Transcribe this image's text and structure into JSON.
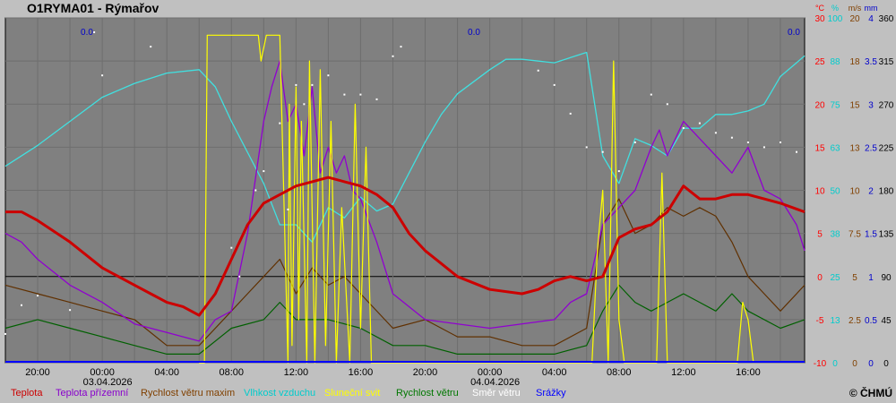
{
  "title": "O1RYMA01 - Rýmařov",
  "copyright": "© ČHMÚ",
  "chart_data": {
    "type": "line",
    "time_range": {
      "start": "2026-04-02T18:00",
      "end": "2026-04-04T19:30"
    },
    "x_tick_labels": [
      {
        "t": "2026-04-02T20:00",
        "label": "20:00"
      },
      {
        "t": "2026-04-03T00:00",
        "label": "00:00",
        "date": "03.04.2026"
      },
      {
        "t": "2026-04-03T04:00",
        "label": "04:00"
      },
      {
        "t": "2026-04-03T08:00",
        "label": "08:00"
      },
      {
        "t": "2026-04-03T12:00",
        "label": "12:00"
      },
      {
        "t": "2026-04-03T16:00",
        "label": "16:00"
      },
      {
        "t": "2026-04-03T20:00",
        "label": "20:00"
      },
      {
        "t": "2026-04-04T00:00",
        "label": "00:00",
        "date": "04.04.2026"
      },
      {
        "t": "2026-04-04T04:00",
        "label": "04:00"
      },
      {
        "t": "2026-04-04T08:00",
        "label": "08:00"
      },
      {
        "t": "2026-04-04T12:00",
        "label": "12:00"
      },
      {
        "t": "2026-04-04T16:00",
        "label": "16:00"
      }
    ],
    "axes": [
      {
        "unit": "°C",
        "color": "#ff0000",
        "ticks": [
          "30",
          "25",
          "20",
          "15",
          "10",
          "5",
          "0",
          "-5",
          "-10"
        ],
        "ylim": [
          -10,
          30
        ]
      },
      {
        "unit": "%",
        "color": "#00cccc",
        "ticks": [
          "100",
          "88",
          "75",
          "63",
          "50",
          "38",
          "25",
          "13",
          "0"
        ],
        "ylim": [
          0,
          100
        ]
      },
      {
        "unit": "m/s",
        "color": "#804000",
        "ticks": [
          "20",
          "18",
          "15",
          "13",
          "10",
          "7.5",
          "5",
          "2.5",
          "0"
        ],
        "ylim": [
          0,
          20
        ]
      },
      {
        "unit": "mm",
        "color": "#0000cc",
        "ticks": [
          "4",
          "3.5",
          "3",
          "2.5",
          "2",
          "1.5",
          "1",
          "0.5",
          "0"
        ],
        "ylim": [
          0,
          4
        ]
      },
      {
        "unit": "",
        "color": "#000000",
        "ticks": [
          "360",
          "315",
          "270",
          "225",
          "180",
          "135",
          "90",
          "45",
          "0"
        ],
        "ylim": [
          0,
          360
        ]
      }
    ],
    "precip_daily_labels": [
      "0.0",
      "0.0",
      "0.0"
    ],
    "legend": [
      {
        "name": "Teplota",
        "color": "#cc0000"
      },
      {
        "name": "Teplota přízemní",
        "color": "#8800cc"
      },
      {
        "name": "Rychlost větru maxim",
        "color": "#804000"
      },
      {
        "name": "Vlhkost vzduchu",
        "color": "#00cccc"
      },
      {
        "name": "Sluneční svit",
        "color": "#ffff00"
      },
      {
        "name": "Rychlost větru",
        "color": "#007700"
      },
      {
        "name": "Směr větru",
        "color": "#ffffff"
      },
      {
        "name": "Srážky",
        "color": "#0000ff"
      }
    ],
    "series": [
      {
        "key": "temp",
        "name": "Teplota",
        "unit": "°C",
        "times": [
          "2026-04-02T18:00",
          "2026-04-02T19:00",
          "2026-04-02T20:00",
          "2026-04-02T22:00",
          "2026-04-03T00:00",
          "2026-04-03T02:00",
          "2026-04-03T03:00",
          "2026-04-03T04:00",
          "2026-04-03T05:00",
          "2026-04-03T06:00",
          "2026-04-03T07:00",
          "2026-04-03T08:00",
          "2026-04-03T09:00",
          "2026-04-03T10:00",
          "2026-04-03T11:00",
          "2026-04-03T12:00",
          "2026-04-03T13:00",
          "2026-04-03T14:00",
          "2026-04-03T15:00",
          "2026-04-03T16:00",
          "2026-04-03T17:00",
          "2026-04-03T18:00",
          "2026-04-03T19:00",
          "2026-04-03T20:00",
          "2026-04-03T21:00",
          "2026-04-03T22:00",
          "2026-04-04T00:00",
          "2026-04-04T02:00",
          "2026-04-04T03:00",
          "2026-04-04T04:00",
          "2026-04-04T05:00",
          "2026-04-04T06:00",
          "2026-04-04T07:00",
          "2026-04-04T08:00",
          "2026-04-04T09:00",
          "2026-04-04T10:00",
          "2026-04-04T11:00",
          "2026-04-04T12:00",
          "2026-04-04T13:00",
          "2026-04-04T14:00",
          "2026-04-04T15:00",
          "2026-04-04T16:00",
          "2026-04-04T17:00",
          "2026-04-04T18:00",
          "2026-04-04T19:30"
        ],
        "values": [
          7.5,
          7.5,
          6.5,
          4.0,
          1.0,
          -1.0,
          -2.0,
          -3.0,
          -3.5,
          -4.5,
          -2.0,
          2.0,
          6.0,
          8.5,
          9.5,
          10.5,
          11.0,
          11.5,
          11.0,
          10.5,
          9.5,
          8.0,
          5.0,
          3.0,
          1.5,
          0.0,
          -1.5,
          -2.0,
          -1.5,
          -0.5,
          0.0,
          -0.5,
          0.0,
          4.5,
          5.5,
          6.0,
          7.5,
          10.5,
          9.0,
          9.0,
          9.5,
          9.5,
          9.0,
          8.5,
          7.5
        ]
      },
      {
        "key": "ground",
        "name": "Teplota přízemní",
        "unit": "°C",
        "times": [
          "2026-04-02T18:00",
          "2026-04-02T19:00",
          "2026-04-02T20:00",
          "2026-04-02T22:00",
          "2026-04-03T00:00",
          "2026-04-03T02:00",
          "2026-04-03T04:00",
          "2026-04-03T06:00",
          "2026-04-03T07:00",
          "2026-04-03T08:00",
          "2026-04-03T09:00",
          "2026-04-03T10:00",
          "2026-04-03T10:30",
          "2026-04-03T11:00",
          "2026-04-03T11:30",
          "2026-04-03T12:00",
          "2026-04-03T12:30",
          "2026-04-03T13:00",
          "2026-04-03T13:30",
          "2026-04-03T14:00",
          "2026-04-03T14:30",
          "2026-04-03T15:00",
          "2026-04-03T15:30",
          "2026-04-03T16:00",
          "2026-04-03T17:00",
          "2026-04-03T18:00",
          "2026-04-03T20:00",
          "2026-04-04T00:00",
          "2026-04-04T04:00",
          "2026-04-04T05:00",
          "2026-04-04T06:00",
          "2026-04-04T07:00",
          "2026-04-04T08:00",
          "2026-04-04T09:00",
          "2026-04-04T10:00",
          "2026-04-04T10:30",
          "2026-04-04T11:00",
          "2026-04-04T12:00",
          "2026-04-04T13:00",
          "2026-04-04T14:00",
          "2026-04-04T15:00",
          "2026-04-04T16:00",
          "2026-04-04T17:00",
          "2026-04-04T18:00",
          "2026-04-04T19:00",
          "2026-04-04T19:30"
        ],
        "values": [
          5.0,
          4.0,
          2.0,
          -1.0,
          -3.0,
          -5.5,
          -6.5,
          -7.5,
          -5.0,
          -4.0,
          5.0,
          18.0,
          22.0,
          25.0,
          18.0,
          20.0,
          14.0,
          22.0,
          12.0,
          15.0,
          12.0,
          14.0,
          10.0,
          9.0,
          4.0,
          -2.0,
          -5.0,
          -6.0,
          -5.0,
          -3.0,
          -2.0,
          6.0,
          8.0,
          10.0,
          15.0,
          17.0,
          14.0,
          18.0,
          16.0,
          14.0,
          12.0,
          15.0,
          10.0,
          9.0,
          6.0,
          3.0
        ]
      },
      {
        "key": "wind_max",
        "name": "Rychlost větru maxim",
        "unit": "m/s",
        "times": [
          "2026-04-02T18:00",
          "2026-04-02T20:00",
          "2026-04-02T22:00",
          "2026-04-03T00:00",
          "2026-04-03T02:00",
          "2026-04-03T04:00",
          "2026-04-03T06:00",
          "2026-04-03T08:00",
          "2026-04-03T09:00",
          "2026-04-03T10:00",
          "2026-04-03T11:00",
          "2026-04-03T12:00",
          "2026-04-03T13:00",
          "2026-04-03T14:00",
          "2026-04-03T15:00",
          "2026-04-03T16:00",
          "2026-04-03T18:00",
          "2026-04-03T20:00",
          "2026-04-03T22:00",
          "2026-04-04T00:00",
          "2026-04-04T02:00",
          "2026-04-04T04:00",
          "2026-04-04T06:00",
          "2026-04-04T07:00",
          "2026-04-04T08:00",
          "2026-04-04T09:00",
          "2026-04-04T10:00",
          "2026-04-04T11:00",
          "2026-04-04T12:00",
          "2026-04-04T13:00",
          "2026-04-04T14:00",
          "2026-04-04T15:00",
          "2026-04-04T16:00",
          "2026-04-04T17:00",
          "2026-04-04T18:00",
          "2026-04-04T19:30"
        ],
        "values": [
          4.5,
          4.0,
          3.5,
          3.0,
          2.5,
          1.0,
          1.0,
          3.0,
          4.0,
          5.0,
          6.0,
          4.0,
          5.5,
          4.5,
          5.0,
          4.0,
          2.0,
          2.5,
          1.5,
          1.5,
          1.0,
          1.0,
          2.0,
          8.0,
          9.5,
          7.5,
          8.0,
          9.0,
          8.5,
          9.0,
          8.5,
          7.0,
          5.0,
          4.0,
          3.0,
          4.5
        ]
      },
      {
        "key": "humidity",
        "name": "Vlhkost vzduchu",
        "unit": "%",
        "times": [
          "2026-04-02T18:00",
          "2026-04-02T20:00",
          "2026-04-02T22:00",
          "2026-04-03T00:00",
          "2026-04-03T02:00",
          "2026-04-03T04:00",
          "2026-04-03T06:00",
          "2026-04-03T07:00",
          "2026-04-03T08:00",
          "2026-04-03T10:00",
          "2026-04-03T11:00",
          "2026-04-03T12:00",
          "2026-04-03T13:00",
          "2026-04-03T14:00",
          "2026-04-03T15:00",
          "2026-04-03T16:00",
          "2026-04-03T17:00",
          "2026-04-03T18:00",
          "2026-04-03T19:00",
          "2026-04-03T20:00",
          "2026-04-03T21:00",
          "2026-04-03T22:00",
          "2026-04-04T00:00",
          "2026-04-04T01:00",
          "2026-04-04T02:00",
          "2026-04-04T04:00",
          "2026-04-04T06:00",
          "2026-04-04T07:00",
          "2026-04-04T08:00",
          "2026-04-04T09:00",
          "2026-04-04T10:00",
          "2026-04-04T11:00",
          "2026-04-04T12:00",
          "2026-04-04T13:00",
          "2026-04-04T14:00",
          "2026-04-04T15:00",
          "2026-04-04T16:00",
          "2026-04-04T17:00",
          "2026-04-04T18:00",
          "2026-04-04T19:30"
        ],
        "values": [
          57,
          63,
          70,
          77,
          81,
          84,
          85,
          80,
          70,
          52,
          40,
          40,
          35,
          45,
          42,
          48,
          44,
          46,
          55,
          64,
          72,
          78,
          85,
          88,
          88,
          87,
          90,
          60,
          52,
          65,
          63,
          60,
          68,
          68,
          72,
          72,
          73,
          75,
          83,
          89
        ]
      },
      {
        "key": "wind",
        "name": "Rychlost větru",
        "unit": "m/s",
        "times": [
          "2026-04-02T18:00",
          "2026-04-02T20:00",
          "2026-04-02T22:00",
          "2026-04-03T00:00",
          "2026-04-03T02:00",
          "2026-04-03T04:00",
          "2026-04-03T06:00",
          "2026-04-03T08:00",
          "2026-04-03T10:00",
          "2026-04-03T11:00",
          "2026-04-03T12:00",
          "2026-04-03T14:00",
          "2026-04-03T16:00",
          "2026-04-03T18:00",
          "2026-04-03T20:00",
          "2026-04-03T22:00",
          "2026-04-04T00:00",
          "2026-04-04T02:00",
          "2026-04-04T04:00",
          "2026-04-04T06:00",
          "2026-04-04T07:00",
          "2026-04-04T08:00",
          "2026-04-04T09:00",
          "2026-04-04T10:00",
          "2026-04-04T11:00",
          "2026-04-04T12:00",
          "2026-04-04T13:00",
          "2026-04-04T14:00",
          "2026-04-04T15:00",
          "2026-04-04T16:00",
          "2026-04-04T18:00",
          "2026-04-04T19:30"
        ],
        "values": [
          2.0,
          2.5,
          2.0,
          1.5,
          1.0,
          0.5,
          0.5,
          2.0,
          2.5,
          3.5,
          2.5,
          2.5,
          2.0,
          1.0,
          1.0,
          0.5,
          0.5,
          0.5,
          0.5,
          1.0,
          3.0,
          4.5,
          3.5,
          3.0,
          3.5,
          4.0,
          3.5,
          3.0,
          4.0,
          3.0,
          2.0,
          2.5
        ]
      },
      {
        "key": "sunshine",
        "name": "Sluneční svit",
        "unit": "°C",
        "times": [
          "2026-04-03T06:00",
          "2026-04-03T06:20",
          "2026-04-03T06:30",
          "2026-04-03T09:40",
          "2026-04-03T09:50",
          "2026-04-03T10:10",
          "2026-04-03T10:20",
          "2026-04-03T11:00",
          "2026-04-03T11:30",
          "2026-04-03T11:35",
          "2026-04-03T11:45",
          "2026-04-03T12:00",
          "2026-04-03T12:10",
          "2026-04-03T12:20",
          "2026-04-03T12:40",
          "2026-04-03T12:50",
          "2026-04-03T13:10",
          "2026-04-03T13:30",
          "2026-04-03T13:50",
          "2026-04-03T14:10",
          "2026-04-03T14:30",
          "2026-04-03T14:50",
          "2026-04-03T15:20",
          "2026-04-03T15:40",
          "2026-04-03T16:00",
          "2026-04-03T16:20",
          "2026-04-03T16:40",
          "2026-04-04T06:20",
          "2026-04-04T06:40",
          "2026-04-04T07:00",
          "2026-04-04T07:20",
          "2026-04-04T07:40",
          "2026-04-04T08:00",
          "2026-04-04T08:20",
          "2026-04-04T10:20",
          "2026-04-04T10:40",
          "2026-04-04T11:00",
          "2026-04-04T11:20",
          "2026-04-04T15:20",
          "2026-04-04T15:40",
          "2026-04-04T16:00",
          "2026-04-04T16:20"
        ],
        "values": [
          -10,
          -10,
          28,
          28,
          25,
          28,
          28,
          28,
          -10,
          20,
          -8,
          22,
          -5,
          18,
          -10,
          25,
          -10,
          24,
          -8,
          18,
          -10,
          8,
          -10,
          20,
          -6,
          15,
          -10,
          -10,
          3,
          10,
          -10,
          25,
          -5,
          -10,
          -10,
          12,
          -10,
          -10,
          -10,
          -3,
          -5,
          -10
        ]
      }
    ],
    "wind_direction_points": [
      {
        "t": "2026-04-02T18:00",
        "deg": 30
      },
      {
        "t": "2026-04-02T19:00",
        "deg": 60
      },
      {
        "t": "2026-04-02T20:00",
        "deg": 70
      },
      {
        "t": "2026-04-02T22:00",
        "deg": 55
      },
      {
        "t": "2026-04-02T23:30",
        "deg": 345
      },
      {
        "t": "2026-04-03T00:00",
        "deg": 300
      },
      {
        "t": "2026-04-03T03:00",
        "deg": 330
      },
      {
        "t": "2026-04-03T08:00",
        "deg": 120
      },
      {
        "t": "2026-04-03T08:30",
        "deg": 90
      },
      {
        "t": "2026-04-03T09:30",
        "deg": 180
      },
      {
        "t": "2026-04-03T10:00",
        "deg": 200
      },
      {
        "t": "2026-04-03T11:00",
        "deg": 250
      },
      {
        "t": "2026-04-03T11:30",
        "deg": 160
      },
      {
        "t": "2026-04-03T12:00",
        "deg": 290
      },
      {
        "t": "2026-04-03T12:30",
        "deg": 270
      },
      {
        "t": "2026-04-03T13:00",
        "deg": 290
      },
      {
        "t": "2026-04-03T14:00",
        "deg": 300
      },
      {
        "t": "2026-04-03T15:00",
        "deg": 280
      },
      {
        "t": "2026-04-03T16:00",
        "deg": 280
      },
      {
        "t": "2026-04-03T17:00",
        "deg": 275
      },
      {
        "t": "2026-04-03T18:00",
        "deg": 320
      },
      {
        "t": "2026-04-03T18:30",
        "deg": 330
      },
      {
        "t": "2026-04-04T03:00",
        "deg": 305
      },
      {
        "t": "2026-04-04T04:00",
        "deg": 290
      },
      {
        "t": "2026-04-04T05:00",
        "deg": 260
      },
      {
        "t": "2026-04-04T06:00",
        "deg": 225
      },
      {
        "t": "2026-04-04T07:00",
        "deg": 220
      },
      {
        "t": "2026-04-04T08:00",
        "deg": 200
      },
      {
        "t": "2026-04-04T09:00",
        "deg": 230
      },
      {
        "t": "2026-04-04T10:00",
        "deg": 280
      },
      {
        "t": "2026-04-04T11:00",
        "deg": 270
      },
      {
        "t": "2026-04-04T12:00",
        "deg": 245
      },
      {
        "t": "2026-04-04T13:00",
        "deg": 250
      },
      {
        "t": "2026-04-04T14:00",
        "deg": 240
      },
      {
        "t": "2026-04-04T15:00",
        "deg": 235
      },
      {
        "t": "2026-04-04T16:00",
        "deg": 230
      },
      {
        "t": "2026-04-04T17:00",
        "deg": 225
      },
      {
        "t": "2026-04-04T18:00",
        "deg": 230
      },
      {
        "t": "2026-04-04T19:00",
        "deg": 220
      }
    ]
  }
}
